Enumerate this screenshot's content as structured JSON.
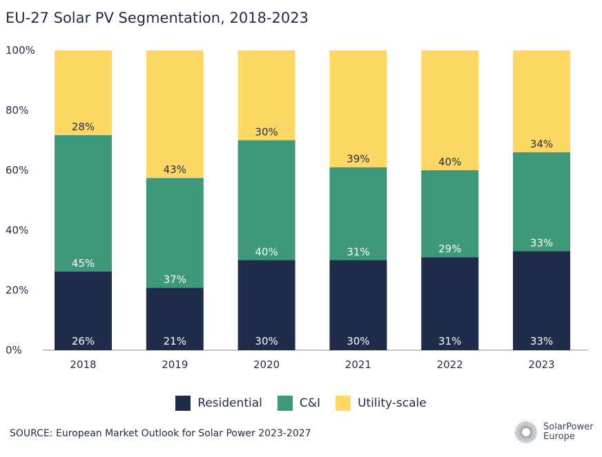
{
  "chart_data": {
    "type": "bar",
    "stacked": true,
    "title": "EU-27 Solar PV Segmentation, 2018-2023",
    "categories": [
      "2018",
      "2019",
      "2020",
      "2021",
      "2022",
      "2023"
    ],
    "series": [
      {
        "name": "Residential",
        "color": "#1f2d4a",
        "label_color": "#ffffff",
        "values": [
          26,
          21,
          30,
          30,
          31,
          33
        ]
      },
      {
        "name": "C&I",
        "color": "#3d997a",
        "label_color": "#ffffff",
        "values": [
          45,
          37,
          40,
          31,
          29,
          33
        ]
      },
      {
        "name": "Utility-scale",
        "color": "#fdd865",
        "label_color": "#1f2a44",
        "values": [
          28,
          43,
          30,
          39,
          40,
          34
        ]
      }
    ],
    "ylim": [
      0,
      100
    ],
    "yticks": [
      "0%",
      "20%",
      "40%",
      "60%",
      "80%",
      "100%"
    ],
    "grid": false,
    "legend": "bottom"
  },
  "source": "SOURCE: European Market Outlook for Solar Power 2023-2027",
  "logo": {
    "line1": "SolarPower",
    "line2": "Europe"
  }
}
